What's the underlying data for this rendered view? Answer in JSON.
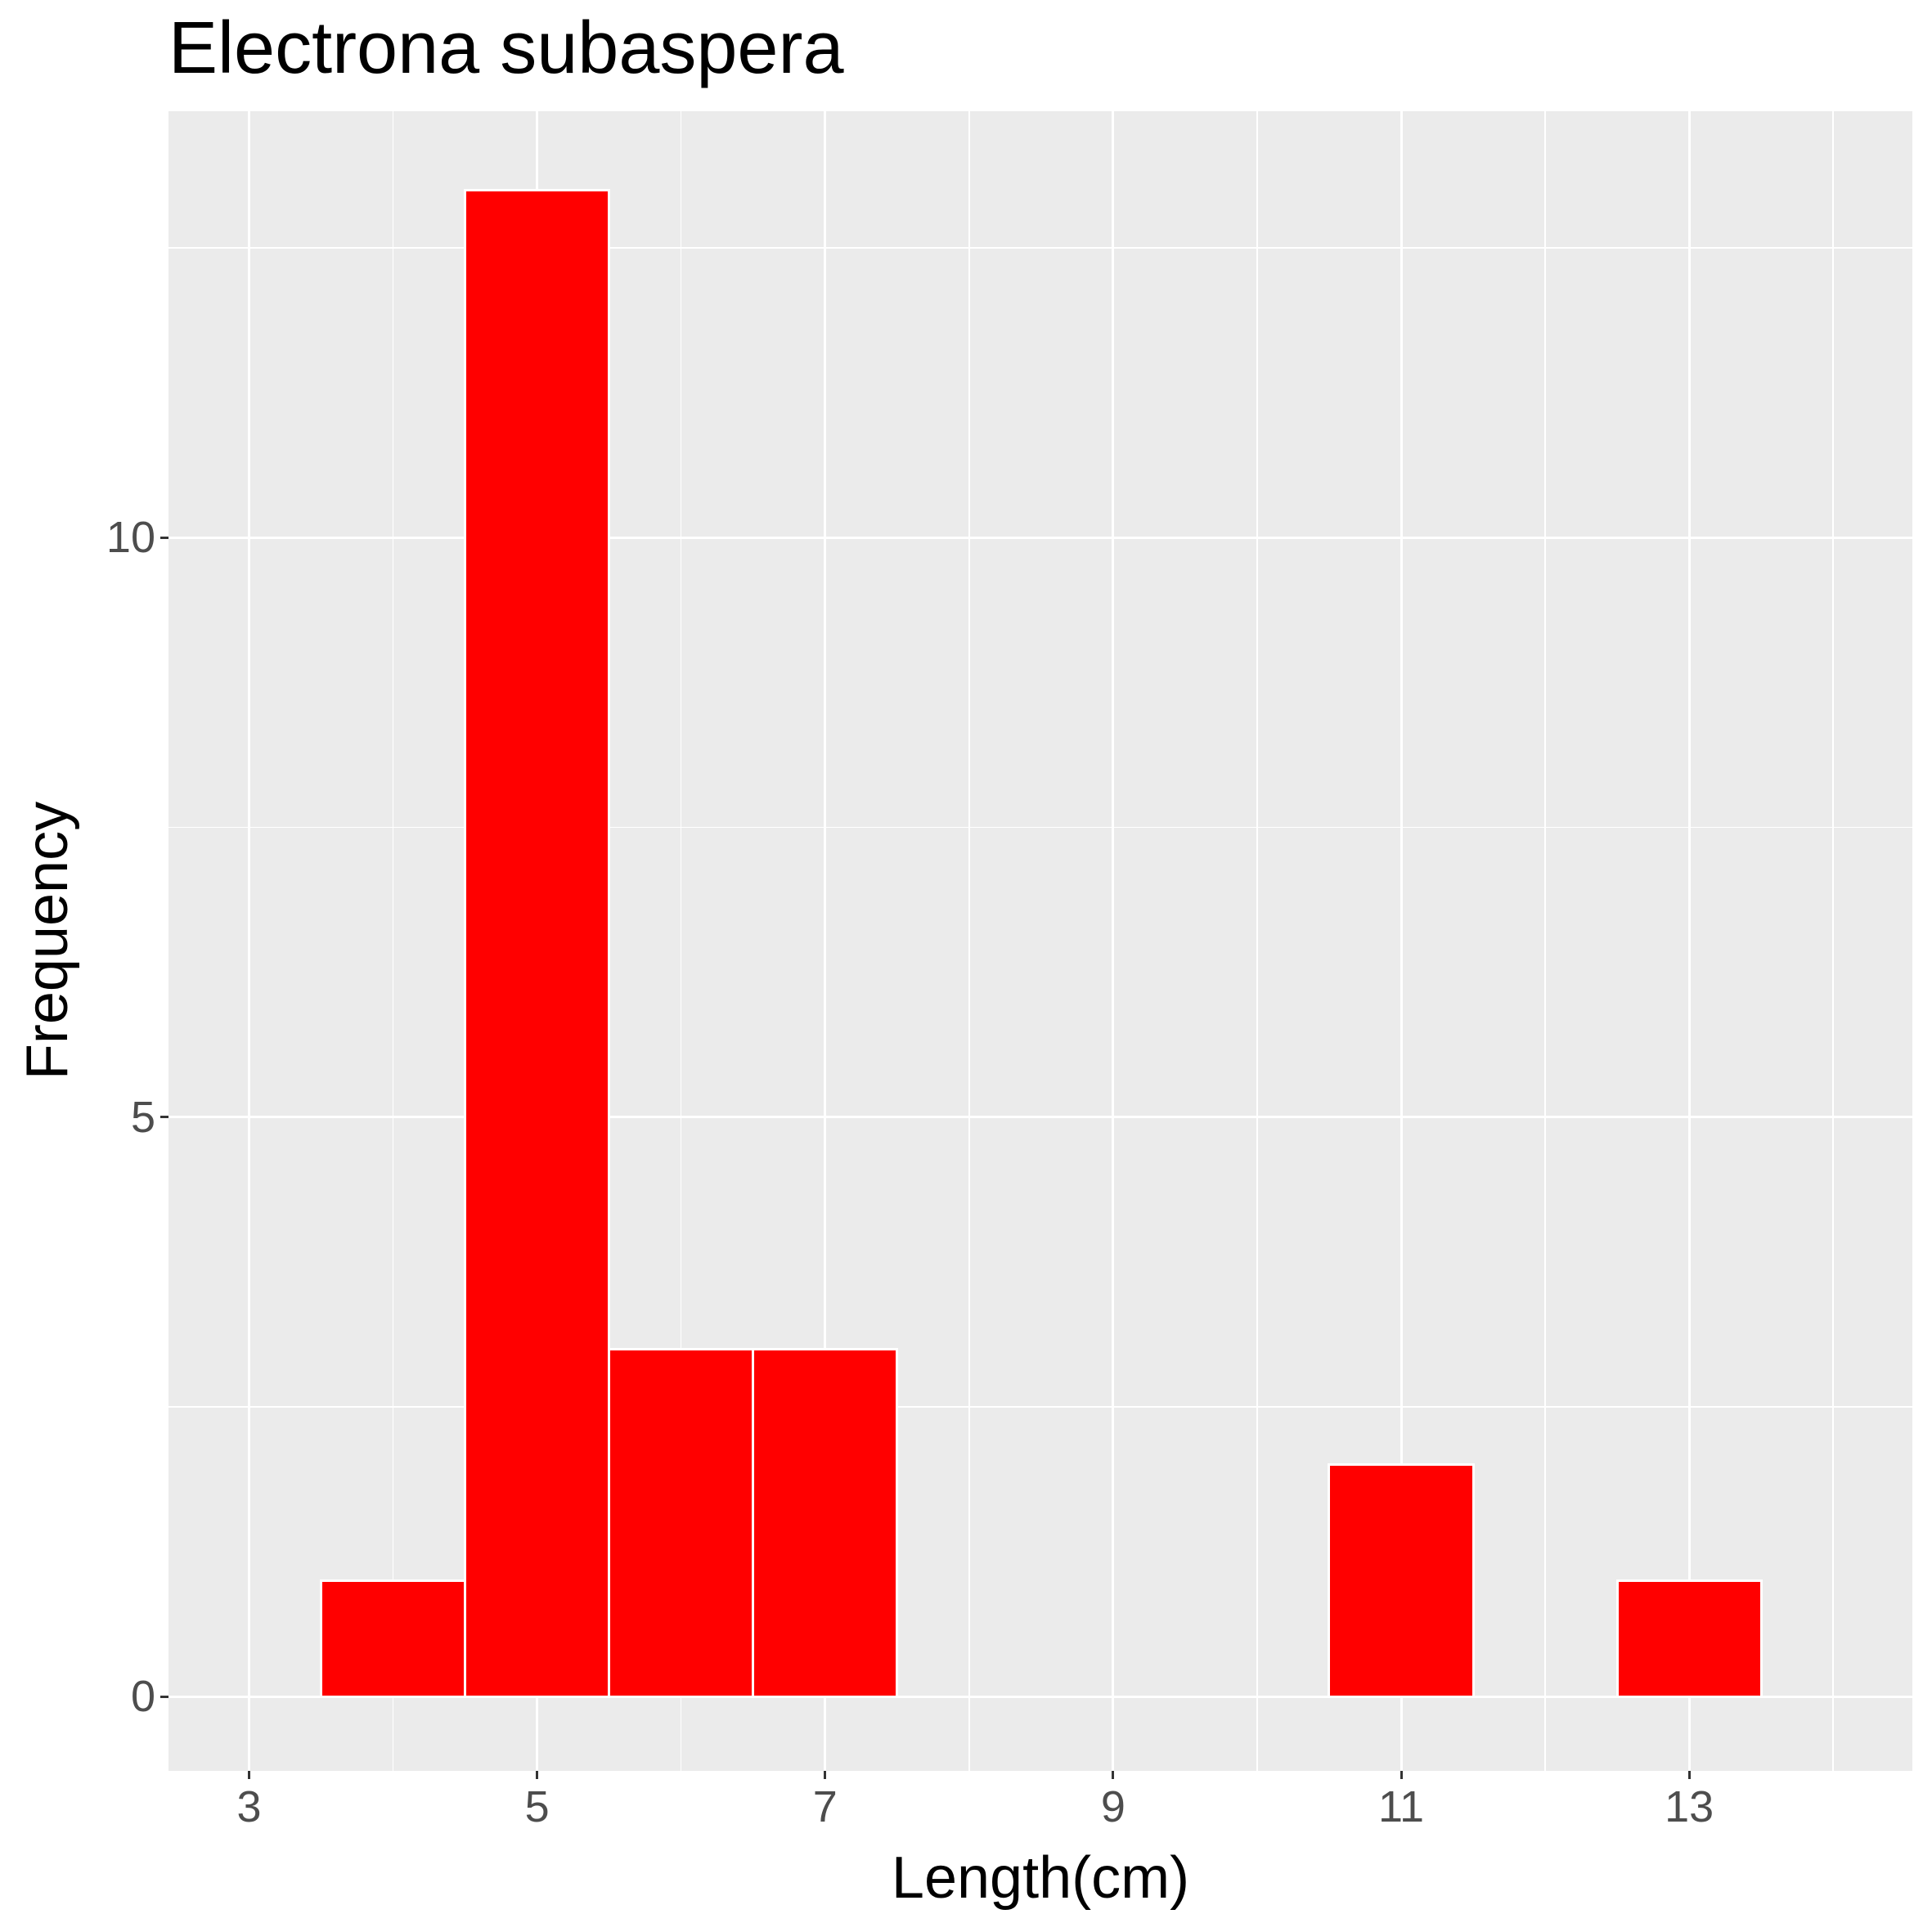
{
  "chart_data": {
    "type": "bar",
    "subtype": "histogram",
    "title": "Electrona subaspera",
    "xlabel": "Length(cm)",
    "ylabel": "Frequency",
    "bins": [
      {
        "center": 4,
        "left": 3.5,
        "right": 4.5,
        "count": 1
      },
      {
        "center": 5,
        "left": 4.5,
        "right": 5.5,
        "count": 13
      },
      {
        "center": 6,
        "left": 5.5,
        "right": 6.5,
        "count": 3
      },
      {
        "center": 7,
        "left": 6.5,
        "right": 7.5,
        "count": 3
      },
      {
        "center": 11,
        "left": 10.5,
        "right": 11.5,
        "count": 2
      },
      {
        "center": 13,
        "left": 12.5,
        "right": 13.5,
        "count": 1
      }
    ],
    "categories": [
      "4",
      "5",
      "6",
      "7",
      "11",
      "13"
    ],
    "values": [
      1,
      13,
      3,
      3,
      2,
      1
    ],
    "xlim": [
      2.44,
      14.55
    ],
    "ylim": [
      -0.64,
      13.68
    ],
    "x_ticks": [
      3,
      5,
      7,
      9,
      11,
      13
    ],
    "y_ticks": [
      0,
      5,
      10
    ],
    "x_minor": [
      4,
      6,
      8,
      10,
      12,
      14
    ],
    "y_minor": [
      2.5,
      7.5,
      12.5
    ],
    "grid": true,
    "legend": null,
    "colors": {
      "fill": "#ff0000",
      "outline": "#ffffff",
      "panel": "#ebebeb",
      "grid": "#ffffff"
    }
  }
}
